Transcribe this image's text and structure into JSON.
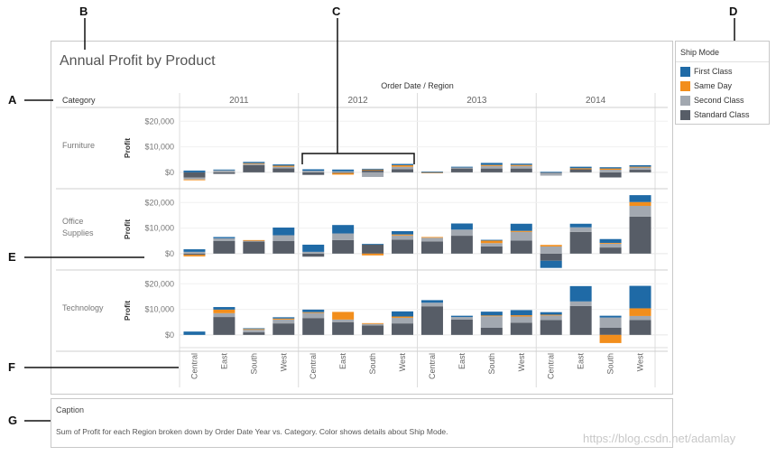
{
  "callouts": {
    "a": "A",
    "b": "B",
    "c": "C",
    "d": "D",
    "e": "E",
    "f": "F",
    "g": "G"
  },
  "watermark": "https://blog.csdn.net/adamlay",
  "caption": {
    "title": "Caption",
    "text": "Sum of Profit for each Region broken down by Order Date Year vs. Category.  Color shows details about Ship Mode."
  },
  "legend": {
    "title": "Ship Mode",
    "items": [
      {
        "label": "First Class",
        "color": "#1f6aa6"
      },
      {
        "label": "Same Day",
        "color": "#f28e1c"
      },
      {
        "label": "Second Class",
        "color": "#a2a8b0"
      },
      {
        "label": "Standard Class",
        "color": "#575d67"
      }
    ]
  },
  "chart_data": {
    "type": "bar",
    "stacked": true,
    "title": "Annual Profit by Product",
    "column_header": "Order Date / Region",
    "row_header": "Category",
    "ylabel": "Profit",
    "yticks": [
      0,
      10000,
      20000
    ],
    "ytick_labels": [
      "$0",
      "$10,000",
      "$20,000"
    ],
    "years": [
      "2011",
      "2012",
      "2013",
      "2014"
    ],
    "regions": [
      "Central",
      "East",
      "South",
      "West"
    ],
    "series_order": [
      "Standard Class",
      "Second Class",
      "Same Day",
      "First Class"
    ],
    "series_colors": {
      "First Class": "#1f6aa6",
      "Same Day": "#f28e1c",
      "Second Class": "#a2a8b0",
      "Standard Class": "#575d67"
    },
    "rows": [
      {
        "category": "Furniture",
        "ylim": [
          -5000,
          24000
        ],
        "values": [
          [
            [
              -2000,
              -800,
              -300,
              700
            ],
            [
              -600,
              800,
              0,
              300
            ],
            [
              2800,
              600,
              200,
              500
            ],
            [
              1600,
              600,
              400,
              500
            ]
          ],
          [
            [
              -1000,
              600,
              0,
              600
            ],
            [
              -300,
              400,
              -600,
              700
            ],
            [
              1000,
              -1800,
              100,
              300
            ],
            [
              1200,
              1000,
              600,
              500
            ]
          ],
          [
            [
              -300,
              0,
              100,
              200
            ],
            [
              1500,
              400,
              0,
              300
            ],
            [
              1500,
              1000,
              400,
              800
            ],
            [
              1500,
              1000,
              400,
              500
            ]
          ],
          [
            [
              -300,
              -1000,
              0,
              200
            ],
            [
              1200,
              0,
              400,
              600
            ],
            [
              -2000,
              1000,
              500,
              500
            ],
            [
              1000,
              900,
              300,
              600
            ]
          ]
        ]
      },
      {
        "category": "Office Supplies",
        "ylim": [
          -5000,
          24000
        ],
        "values": [
          [
            [
              -500,
              700,
              -600,
              1000
            ],
            [
              5000,
              1000,
              0,
              500
            ],
            [
              4700,
              400,
              200,
              0
            ],
            [
              4900,
              2300,
              0,
              3000
            ]
          ],
          [
            [
              -1200,
              700,
              0,
              2800
            ],
            [
              5300,
              2600,
              0,
              3300
            ],
            [
              3500,
              0,
              -700,
              300
            ],
            [
              5500,
              1600,
              400,
              1300
            ]
          ],
          [
            [
              4800,
              1400,
              300,
              0
            ],
            [
              7000,
              2400,
              0,
              2400
            ],
            [
              2800,
              1300,
              1000,
              300
            ],
            [
              5100,
              3400,
              400,
              2800
            ]
          ],
          [
            [
              -2800,
              2800,
              600,
              -2800
            ],
            [
              8500,
              1800,
              0,
              1400
            ],
            [
              2400,
              1500,
              300,
              1500
            ],
            [
              14500,
              4200,
              1500,
              2700
            ]
          ]
        ]
      },
      {
        "category": "Technology",
        "ylim": [
          -5000,
          24000
        ],
        "values": [
          [
            [
              0,
              0,
              0,
              1300
            ],
            [
              7000,
              1500,
              1400,
              1000
            ],
            [
              1000,
              1000,
              300,
              300
            ],
            [
              4500,
              1500,
              400,
              500
            ]
          ],
          [
            [
              6600,
              2000,
              300,
              1000
            ],
            [
              5000,
              1000,
              3000,
              0
            ],
            [
              3700,
              600,
              300,
              0
            ],
            [
              4500,
              2200,
              500,
              2000
            ]
          ],
          [
            [
              11200,
              1400,
              0,
              1000
            ],
            [
              6000,
              1000,
              0,
              500
            ],
            [
              2800,
              4500,
              300,
              1500
            ],
            [
              4800,
              2400,
              500,
              2000
            ]
          ],
          [
            [
              5800,
              1800,
              300,
              1000
            ],
            [
              11300,
              1800,
              0,
              6000
            ],
            [
              2800,
              4000,
              -3200,
              700
            ],
            [
              5800,
              1600,
              3000,
              8800
            ]
          ]
        ]
      }
    ]
  }
}
